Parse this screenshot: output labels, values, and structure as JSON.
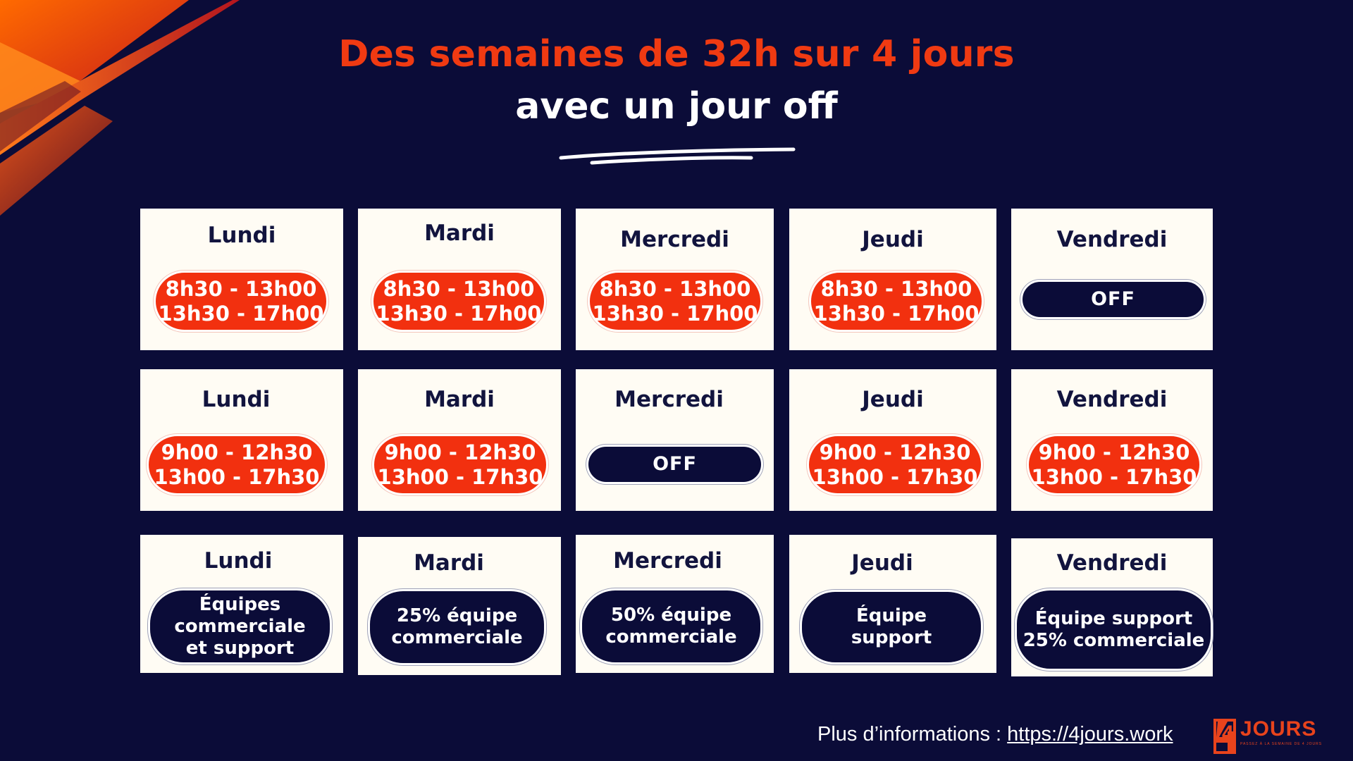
{
  "title": {
    "line1": "Des semaines de 32h sur 4 jours",
    "line2": "avec un jour off"
  },
  "colors": {
    "background": "#0b0c38",
    "accent_red": "#f2300f",
    "card": "#fffcf4",
    "navy_pill": "#0b0c38"
  },
  "row1": {
    "lundi": {
      "day": "Lundi",
      "l1": "8h30 - 13h00",
      "l2": "13h30 - 17h00"
    },
    "mardi": {
      "day": "Mardi",
      "l1": "8h30 - 13h00",
      "l2": "13h30 - 17h00"
    },
    "mercredi": {
      "day": "Mercredi",
      "l1": "8h30 - 13h00",
      "l2": "13h30 - 17h00"
    },
    "jeudi": {
      "day": "Jeudi",
      "l1": "8h30 - 13h00",
      "l2": "13h30 - 17h00"
    },
    "vendredi": {
      "day": "Vendredi",
      "off": "OFF"
    }
  },
  "row2": {
    "lundi": {
      "day": "Lundi",
      "l1": "9h00 - 12h30",
      "l2": "13h00 - 17h30"
    },
    "mardi": {
      "day": "Mardi",
      "l1": "9h00 - 12h30",
      "l2": "13h00 - 17h30"
    },
    "mercredi": {
      "day": "Mercredi",
      "off": "OFF"
    },
    "jeudi": {
      "day": "Jeudi",
      "l1": "9h00 - 12h30",
      "l2": "13h00 - 17h30"
    },
    "vendredi": {
      "day": "Vendredi",
      "l1": "9h00 - 12h30",
      "l2": "13h00 - 17h30"
    }
  },
  "row3": {
    "lundi": {
      "day": "Lundi",
      "lines": [
        "Équipes",
        "commerciale",
        "et support"
      ]
    },
    "mardi": {
      "day": "Mardi",
      "lines": [
        "25% équipe",
        "commerciale"
      ]
    },
    "mercredi": {
      "day": "Mercredi",
      "lines": [
        "50% équipe",
        "commerciale"
      ]
    },
    "jeudi": {
      "day": "Jeudi",
      "lines": [
        "Équipe",
        "support"
      ]
    },
    "vendredi": {
      "day": "Vendredi",
      "lines": [
        "Équipe support",
        "25% commerciale"
      ]
    }
  },
  "footer": {
    "label": "Plus d’informations : ",
    "link": "https://4jours.work"
  },
  "logo": {
    "mark": "4",
    "word": "JOURS",
    "tagline": "PASSEZ À LA SEMAINE DE 4 JOURS"
  },
  "icons": {
    "corner": "corner-stripes-decoration",
    "underline": "brush-underline",
    "logo": "4jours-logo-icon"
  }
}
